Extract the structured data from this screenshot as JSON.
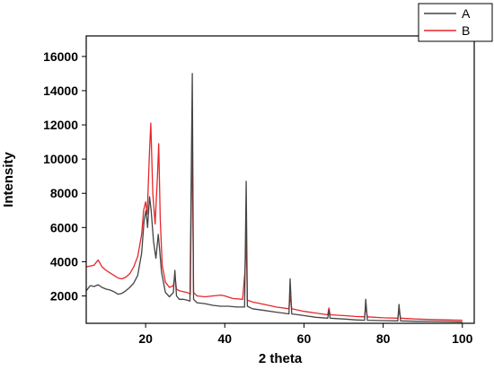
{
  "chart_data": {
    "type": "line",
    "xlabel": "2 theta",
    "ylabel": "Intensity",
    "xlim": [
      5,
      103
    ],
    "ylim": [
      400,
      17200
    ],
    "x_ticks": [
      20,
      40,
      60,
      80,
      100
    ],
    "y_ticks": [
      2000,
      4000,
      6000,
      8000,
      10000,
      12000,
      14000,
      16000
    ],
    "grid": false,
    "legend_position": "top-right",
    "series": [
      {
        "name": "A",
        "color": "#444444",
        "points": [
          [
            5,
            2300
          ],
          [
            6,
            2600
          ],
          [
            7,
            2550
          ],
          [
            8,
            2650
          ],
          [
            9,
            2500
          ],
          [
            10,
            2400
          ],
          [
            11,
            2350
          ],
          [
            12,
            2250
          ],
          [
            13,
            2100
          ],
          [
            14,
            2150
          ],
          [
            15,
            2300
          ],
          [
            16,
            2500
          ],
          [
            17,
            2750
          ],
          [
            18,
            3200
          ],
          [
            19,
            4500
          ],
          [
            19.6,
            6400
          ],
          [
            20.1,
            7000
          ],
          [
            20.5,
            6000
          ],
          [
            21,
            7800
          ],
          [
            21.4,
            7000
          ],
          [
            22,
            5200
          ],
          [
            22.6,
            4200
          ],
          [
            23.2,
            5600
          ],
          [
            23.5,
            4800
          ],
          [
            24,
            3400
          ],
          [
            25,
            2200
          ],
          [
            26,
            1950
          ],
          [
            27,
            2200
          ],
          [
            27.4,
            3500
          ],
          [
            27.8,
            2000
          ],
          [
            28.5,
            1800
          ],
          [
            29.5,
            1800
          ],
          [
            30.5,
            1750
          ],
          [
            31.2,
            1700
          ],
          [
            31.6,
            11000
          ],
          [
            31.8,
            15000
          ],
          [
            32.1,
            1800
          ],
          [
            33,
            1600
          ],
          [
            35,
            1550
          ],
          [
            37,
            1450
          ],
          [
            39,
            1400
          ],
          [
            41,
            1400
          ],
          [
            43,
            1350
          ],
          [
            45,
            1350
          ],
          [
            45.2,
            5000
          ],
          [
            45.4,
            8700
          ],
          [
            45.7,
            1400
          ],
          [
            47,
            1250
          ],
          [
            50,
            1150
          ],
          [
            53,
            1050
          ],
          [
            56.2,
            950
          ],
          [
            56.5,
            3000
          ],
          [
            56.9,
            950
          ],
          [
            60,
            850
          ],
          [
            63,
            750
          ],
          [
            66,
            700
          ],
          [
            66.3,
            1200
          ],
          [
            66.6,
            700
          ],
          [
            70,
            650
          ],
          [
            73,
            600
          ],
          [
            75.3,
            580
          ],
          [
            75.6,
            1800
          ],
          [
            76,
            580
          ],
          [
            80,
            560
          ],
          [
            83.7,
            540
          ],
          [
            84,
            1500
          ],
          [
            84.4,
            540
          ],
          [
            88,
            520
          ],
          [
            92,
            510
          ],
          [
            96,
            500
          ],
          [
            100,
            480
          ]
        ]
      },
      {
        "name": "B",
        "color": "#e8262a",
        "points": [
          [
            5,
            3700
          ],
          [
            6,
            3750
          ],
          [
            7,
            3800
          ],
          [
            8,
            4100
          ],
          [
            9,
            3700
          ],
          [
            10,
            3500
          ],
          [
            11,
            3350
          ],
          [
            12,
            3200
          ],
          [
            13,
            3050
          ],
          [
            14,
            3000
          ],
          [
            15,
            3100
          ],
          [
            16,
            3300
          ],
          [
            17,
            3700
          ],
          [
            18,
            4300
          ],
          [
            19,
            5600
          ],
          [
            19.5,
            7000
          ],
          [
            20,
            7500
          ],
          [
            20.4,
            6800
          ],
          [
            21,
            10500
          ],
          [
            21.3,
            12100
          ],
          [
            21.8,
            8000
          ],
          [
            22.4,
            6200
          ],
          [
            23,
            9000
          ],
          [
            23.3,
            10900
          ],
          [
            23.7,
            6500
          ],
          [
            24.2,
            3800
          ],
          [
            25,
            2800
          ],
          [
            26,
            2500
          ],
          [
            27,
            2600
          ],
          [
            27.4,
            3200
          ],
          [
            27.8,
            2400
          ],
          [
            28.5,
            2300
          ],
          [
            29.5,
            2250
          ],
          [
            30.5,
            2200
          ],
          [
            31.3,
            2100
          ],
          [
            31.6,
            9000
          ],
          [
            31.8,
            10800
          ],
          [
            32.1,
            2200
          ],
          [
            33,
            2000
          ],
          [
            35,
            1950
          ],
          [
            37,
            2000
          ],
          [
            39,
            2050
          ],
          [
            40,
            2000
          ],
          [
            42,
            1850
          ],
          [
            44.5,
            1800
          ],
          [
            45.1,
            3500
          ],
          [
            45.4,
            5500
          ],
          [
            45.7,
            1750
          ],
          [
            47,
            1650
          ],
          [
            50,
            1500
          ],
          [
            53,
            1350
          ],
          [
            56.2,
            1250
          ],
          [
            56.5,
            2000
          ],
          [
            56.9,
            1250
          ],
          [
            60,
            1100
          ],
          [
            63,
            1000
          ],
          [
            66,
            900
          ],
          [
            66.3,
            1300
          ],
          [
            66.6,
            900
          ],
          [
            70,
            850
          ],
          [
            73,
            800
          ],
          [
            75.3,
            780
          ],
          [
            75.6,
            1400
          ],
          [
            76,
            780
          ],
          [
            80,
            720
          ],
          [
            83.7,
            700
          ],
          [
            84,
            1200
          ],
          [
            84.4,
            700
          ],
          [
            88,
            650
          ],
          [
            92,
            620
          ],
          [
            96,
            600
          ],
          [
            100,
            580
          ]
        ]
      }
    ]
  }
}
